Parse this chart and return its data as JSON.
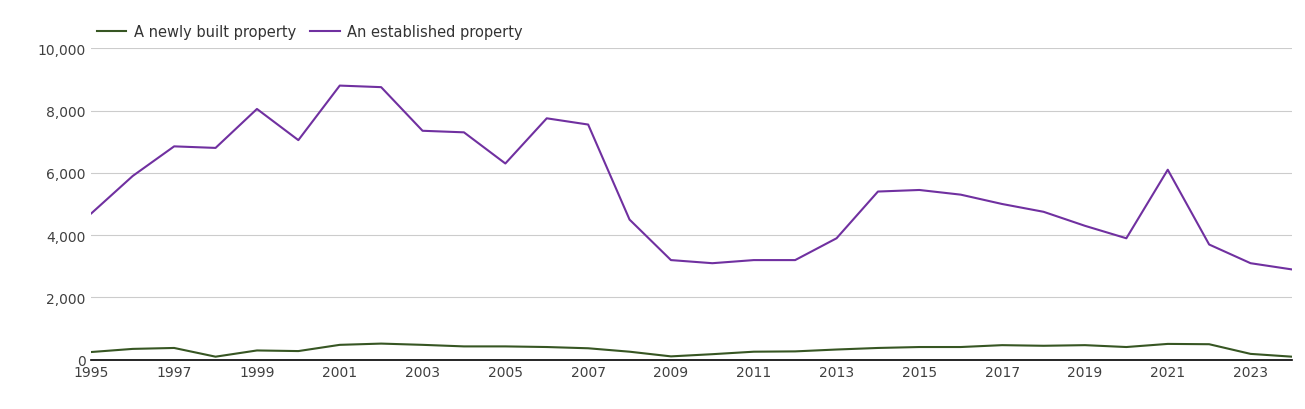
{
  "years": [
    1995,
    1996,
    1997,
    1998,
    1999,
    2000,
    2001,
    2002,
    2003,
    2004,
    2005,
    2006,
    2007,
    2008,
    2009,
    2010,
    2011,
    2012,
    2013,
    2014,
    2015,
    2016,
    2017,
    2018,
    2019,
    2020,
    2021,
    2022,
    2023,
    2024
  ],
  "established": [
    4700,
    5900,
    6850,
    6800,
    8050,
    7050,
    8800,
    8750,
    7350,
    7300,
    6300,
    7750,
    7550,
    4500,
    3200,
    3100,
    3200,
    3200,
    3900,
    5400,
    5450,
    5300,
    5000,
    4750,
    4300,
    3900,
    6100,
    3700,
    3100,
    2900
  ],
  "new_build": [
    250,
    350,
    380,
    100,
    300,
    280,
    480,
    520,
    480,
    430,
    430,
    410,
    370,
    260,
    110,
    180,
    260,
    270,
    330,
    380,
    410,
    410,
    470,
    450,
    470,
    410,
    510,
    500,
    190,
    100
  ],
  "established_color": "#7030A0",
  "new_build_color": "#375623",
  "established_label": "An established property",
  "new_build_label": "A newly built property",
  "ylim": [
    0,
    10000
  ],
  "yticks": [
    0,
    2000,
    4000,
    6000,
    8000,
    10000
  ],
  "background_color": "#ffffff",
  "grid_color": "#cccccc",
  "tick_label_color": "#404040",
  "legend_fontsize": 10.5,
  "axis_fontsize": 10
}
